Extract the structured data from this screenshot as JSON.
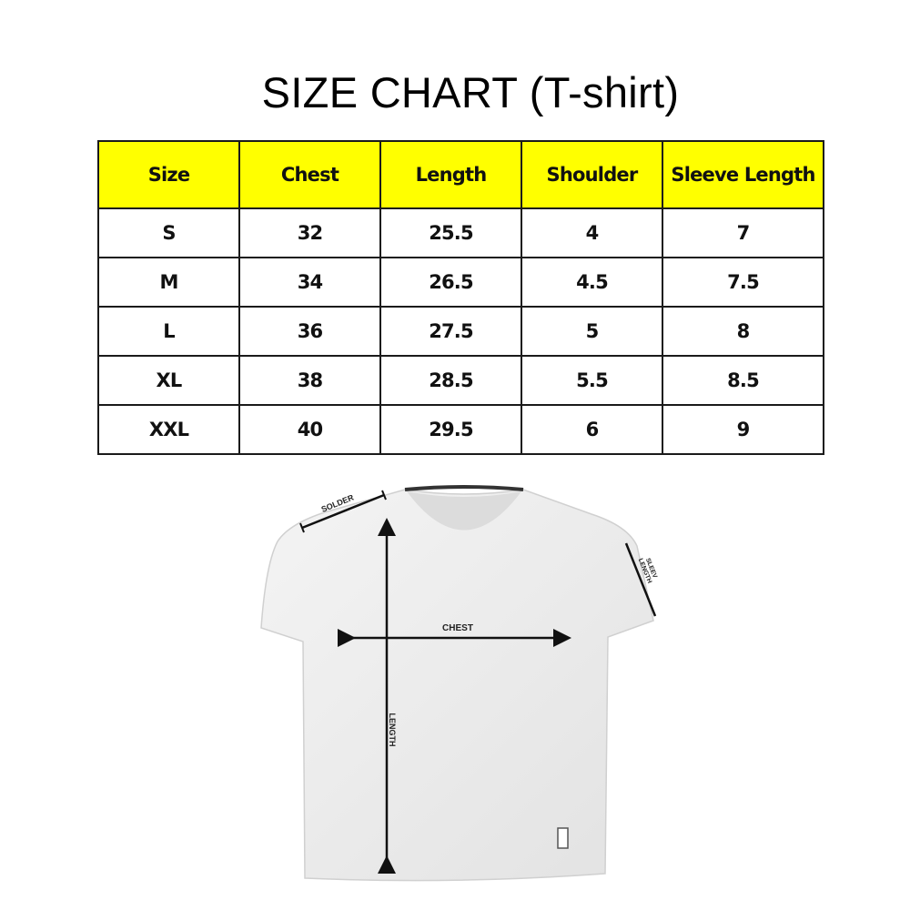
{
  "title": "SIZE CHART (T-shirt)",
  "table": {
    "headers": [
      "Size",
      "Chest",
      "Length",
      "Shoulder",
      "Sleeve Length"
    ],
    "rows": [
      [
        "S",
        "32",
        "25.5",
        "4",
        "7"
      ],
      [
        "M",
        "34",
        "26.5",
        "4.5",
        "7.5"
      ],
      [
        "L",
        "36",
        "27.5",
        "5",
        "8"
      ],
      [
        "XL",
        "38",
        "28.5",
        "5.5",
        "8.5"
      ],
      [
        "XXL",
        "40",
        "29.5",
        "6",
        "9"
      ]
    ],
    "header_color": "#ffff00"
  },
  "diagram": {
    "labels": {
      "shoulder": "SOLDER",
      "chest": "CHEST",
      "length": "LENGTH",
      "sleeve_line1": "SLEEV",
      "sleeve_line2": "LENGTH"
    }
  }
}
